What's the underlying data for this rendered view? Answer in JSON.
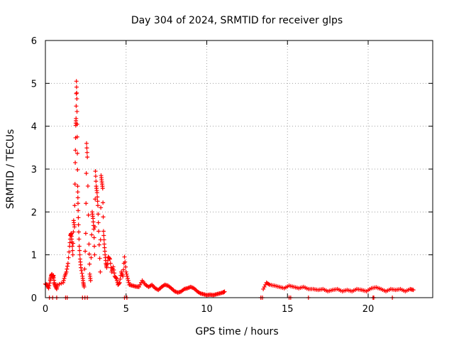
{
  "chart_data": {
    "type": "scatter",
    "title": "Day 304 of 2024, SRMTID for receiver glps",
    "xlabel": "GPS time / hours",
    "ylabel": "SRMTID / TECUs",
    "xlim": [
      0,
      24
    ],
    "ylim": [
      0,
      6
    ],
    "xticks": [
      0,
      5,
      10,
      15,
      20
    ],
    "yticks": [
      0,
      1,
      2,
      3,
      4,
      5,
      6
    ],
    "grid": true,
    "marker": "+",
    "series": [
      {
        "name": "SRMTID",
        "color": "#ff0000",
        "points": [
          [
            0.0,
            0.32
          ],
          [
            0.1,
            0.3
          ],
          [
            0.2,
            0.22
          ],
          [
            0.3,
            0.4
          ],
          [
            0.35,
            0.5
          ],
          [
            0.4,
            0.55
          ],
          [
            0.45,
            0.48
          ],
          [
            0.5,
            0.52
          ],
          [
            0.55,
            0.35
          ],
          [
            0.6,
            0.28
          ],
          [
            0.7,
            0.2
          ],
          [
            0.75,
            0.3
          ],
          [
            1.1,
            0.35
          ],
          [
            1.2,
            0.5
          ],
          [
            1.3,
            0.6
          ],
          [
            1.4,
            0.8
          ],
          [
            1.5,
            1.2
          ],
          [
            1.55,
            1.45
          ],
          [
            1.6,
            1.5
          ],
          [
            1.65,
            1.3
          ],
          [
            1.7,
            1.0
          ],
          [
            1.75,
            1.8
          ],
          [
            1.8,
            1.65
          ],
          [
            1.85,
            3.15
          ],
          [
            1.88,
            4.02
          ],
          [
            1.9,
            4.18
          ],
          [
            1.92,
            5.05
          ],
          [
            1.95,
            4.64
          ],
          [
            1.97,
            3.75
          ],
          [
            2.0,
            2.6
          ],
          [
            2.02,
            2.2
          ],
          [
            2.05,
            1.7
          ],
          [
            2.1,
            1.2
          ],
          [
            2.15,
            0.9
          ],
          [
            2.2,
            0.7
          ],
          [
            2.3,
            0.5
          ],
          [
            2.35,
            0.35
          ],
          [
            2.4,
            0.25
          ],
          [
            2.5,
            1.5
          ],
          [
            2.55,
            3.6
          ],
          [
            2.6,
            3.28
          ],
          [
            2.7,
            1.25
          ],
          [
            2.75,
            0.55
          ],
          [
            2.8,
            0.4
          ],
          [
            2.9,
            2.0
          ],
          [
            2.95,
            1.85
          ],
          [
            3.0,
            1.6
          ],
          [
            3.05,
            1.0
          ],
          [
            3.1,
            2.95
          ],
          [
            3.15,
            2.6
          ],
          [
            3.2,
            2.45
          ],
          [
            3.25,
            2.15
          ],
          [
            3.3,
            1.55
          ],
          [
            3.4,
            0.6
          ],
          [
            3.45,
            2.85
          ],
          [
            3.5,
            2.7
          ],
          [
            3.55,
            2.55
          ],
          [
            3.6,
            1.55
          ],
          [
            3.65,
            1.25
          ],
          [
            3.7,
            1.0
          ],
          [
            3.75,
            0.8
          ],
          [
            3.8,
            0.7
          ],
          [
            3.9,
            0.95
          ],
          [
            4.0,
            0.9
          ],
          [
            4.1,
            0.6
          ],
          [
            4.2,
            0.72
          ],
          [
            4.3,
            0.5
          ],
          [
            4.4,
            0.45
          ],
          [
            4.5,
            0.3
          ],
          [
            4.6,
            0.35
          ],
          [
            4.7,
            0.6
          ],
          [
            4.8,
            0.5
          ],
          [
            4.9,
            0.95
          ],
          [
            5.0,
            0.6
          ],
          [
            5.1,
            0.45
          ],
          [
            5.2,
            0.3
          ],
          [
            5.4,
            0.28
          ],
          [
            5.6,
            0.26
          ],
          [
            5.8,
            0.25
          ],
          [
            6.0,
            0.4
          ],
          [
            6.2,
            0.3
          ],
          [
            6.4,
            0.25
          ],
          [
            6.6,
            0.3
          ],
          [
            6.8,
            0.22
          ],
          [
            7.0,
            0.18
          ],
          [
            7.2,
            0.25
          ],
          [
            7.4,
            0.3
          ],
          [
            7.6,
            0.28
          ],
          [
            7.8,
            0.22
          ],
          [
            8.0,
            0.15
          ],
          [
            8.2,
            0.12
          ],
          [
            8.4,
            0.14
          ],
          [
            8.6,
            0.2
          ],
          [
            8.8,
            0.22
          ],
          [
            9.0,
            0.25
          ],
          [
            9.2,
            0.22
          ],
          [
            9.4,
            0.15
          ],
          [
            9.6,
            0.1
          ],
          [
            9.8,
            0.08
          ],
          [
            10.0,
            0.06
          ],
          [
            10.2,
            0.07
          ],
          [
            10.4,
            0.06
          ],
          [
            10.6,
            0.08
          ],
          [
            10.8,
            0.1
          ],
          [
            11.0,
            0.12
          ],
          [
            11.1,
            0.14
          ],
          [
            13.5,
            0.2
          ],
          [
            13.7,
            0.35
          ],
          [
            13.9,
            0.3
          ],
          [
            14.2,
            0.28
          ],
          [
            14.5,
            0.25
          ],
          [
            14.8,
            0.22
          ],
          [
            15.1,
            0.28
          ],
          [
            15.4,
            0.25
          ],
          [
            15.7,
            0.22
          ],
          [
            16.0,
            0.25
          ],
          [
            16.3,
            0.2
          ],
          [
            16.6,
            0.2
          ],
          [
            16.9,
            0.18
          ],
          [
            17.2,
            0.2
          ],
          [
            17.5,
            0.15
          ],
          [
            17.8,
            0.18
          ],
          [
            18.1,
            0.2
          ],
          [
            18.4,
            0.15
          ],
          [
            18.7,
            0.18
          ],
          [
            19.0,
            0.15
          ],
          [
            19.3,
            0.2
          ],
          [
            19.6,
            0.18
          ],
          [
            19.9,
            0.15
          ],
          [
            20.2,
            0.22
          ],
          [
            20.5,
            0.24
          ],
          [
            20.8,
            0.2
          ],
          [
            21.1,
            0.15
          ],
          [
            21.4,
            0.2
          ],
          [
            21.7,
            0.18
          ],
          [
            22.0,
            0.2
          ],
          [
            22.3,
            0.15
          ],
          [
            22.6,
            0.2
          ],
          [
            22.8,
            0.18
          ]
        ],
        "zero_points": [
          0.25,
          0.45,
          0.7,
          1.25,
          1.35,
          2.3,
          2.45,
          2.6,
          4.9,
          5.05,
          13.35,
          13.45,
          15.1,
          15.2,
          16.3,
          20.3,
          20.35,
          21.5
        ]
      }
    ]
  }
}
